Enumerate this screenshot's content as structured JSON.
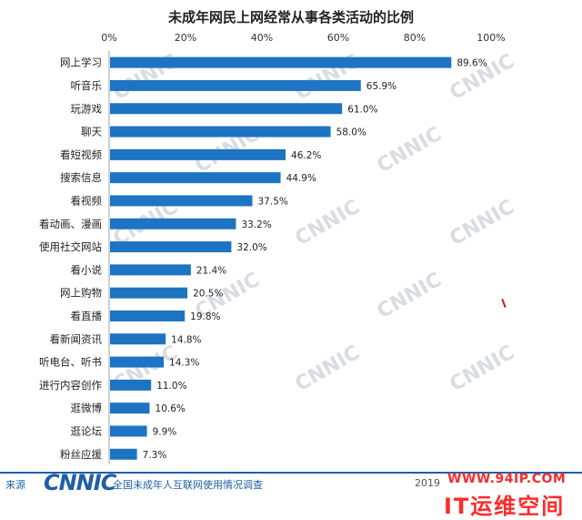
{
  "chart_data": {
    "type": "bar",
    "orientation": "horizontal",
    "title": "未成年网民上网经常从事各类活动的比例",
    "x_ticks": [
      "0%",
      "20%",
      "40%",
      "60%",
      "80%",
      "100%"
    ],
    "xlim": [
      0,
      100
    ],
    "categories": [
      "网上学习",
      "听音乐",
      "玩游戏",
      "聊天",
      "看短视频",
      "搜索信息",
      "看视频",
      "看动画、漫画",
      "使用社交网站",
      "看小说",
      "网上购物",
      "看直播",
      "看新闻资讯",
      "听电台、听书",
      "进行内容创作",
      "逛微博",
      "逛论坛",
      "粉丝应援"
    ],
    "values": [
      89.6,
      65.9,
      61.0,
      58.0,
      46.2,
      44.9,
      37.5,
      33.2,
      32.0,
      21.4,
      20.5,
      19.8,
      14.8,
      14.3,
      11.0,
      10.6,
      9.9,
      7.3
    ],
    "value_labels": [
      "89.6%",
      "65.9%",
      "61.0%",
      "58.0%",
      "46.2%",
      "44.9%",
      "37.5%",
      "33.2%",
      "32.0%",
      "21.4%",
      "20.5%",
      "19.8%",
      "14.8%",
      "14.3%",
      "11.0%",
      "10.6%",
      "9.9%",
      "7.3%"
    ],
    "grid": false,
    "legend": "none",
    "bar_color": "#1d74c2"
  },
  "footer": {
    "source_label": "来源",
    "logo": "CNNIC",
    "survey_title": "全国未成年人互联网使用情况调查",
    "year": "2019"
  },
  "watermarks": {
    "chart_text": "CNNIC",
    "site": "WWW.94IP.COM",
    "brand": "IT运维空间"
  },
  "colors": {
    "bar": "#1d74c2",
    "accent": "#1f5fa8",
    "watermark_red": "#ff2a2a"
  }
}
